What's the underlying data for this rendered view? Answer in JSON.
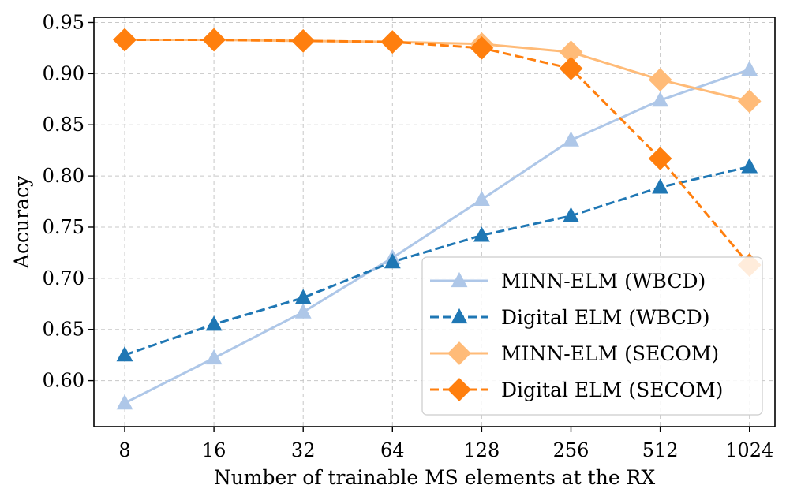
{
  "chart_data": {
    "type": "line",
    "title": "",
    "xlabel": "Number of trainable MS elements at the RX",
    "ylabel": "Accuracy",
    "categories": [
      "8",
      "16",
      "32",
      "64",
      "128",
      "256",
      "512",
      "1024"
    ],
    "ylim": [
      0.555,
      0.955
    ],
    "yticks": [
      "0.60",
      "0.65",
      "0.70",
      "0.75",
      "0.80",
      "0.85",
      "0.90",
      "0.95"
    ],
    "grid": true,
    "legend_position": "lower-right",
    "series": [
      {
        "name": "MINN-ELM (WBCD)",
        "color": "#aec7e8",
        "line_style": "solid",
        "marker": "triangle",
        "values": [
          0.578,
          0.622,
          0.667,
          0.72,
          0.777,
          0.835,
          0.874,
          0.904
        ]
      },
      {
        "name": "Digital ELM (WBCD)",
        "color": "#1f77b4",
        "line_style": "dashed",
        "marker": "triangle",
        "values": [
          0.625,
          0.655,
          0.681,
          0.716,
          0.742,
          0.761,
          0.789,
          0.809
        ]
      },
      {
        "name": "MINN-ELM (SECOM)",
        "color": "#ffbb78",
        "line_style": "solid",
        "marker": "diamond",
        "values": [
          0.933,
          0.933,
          0.932,
          0.931,
          0.929,
          0.921,
          0.894,
          0.873
        ]
      },
      {
        "name": "Digital ELM (SECOM)",
        "color": "#ff7f0e",
        "line_style": "dashed",
        "marker": "diamond",
        "values": [
          0.933,
          0.933,
          0.932,
          0.931,
          0.925,
          0.905,
          0.817,
          0.713
        ]
      }
    ]
  }
}
